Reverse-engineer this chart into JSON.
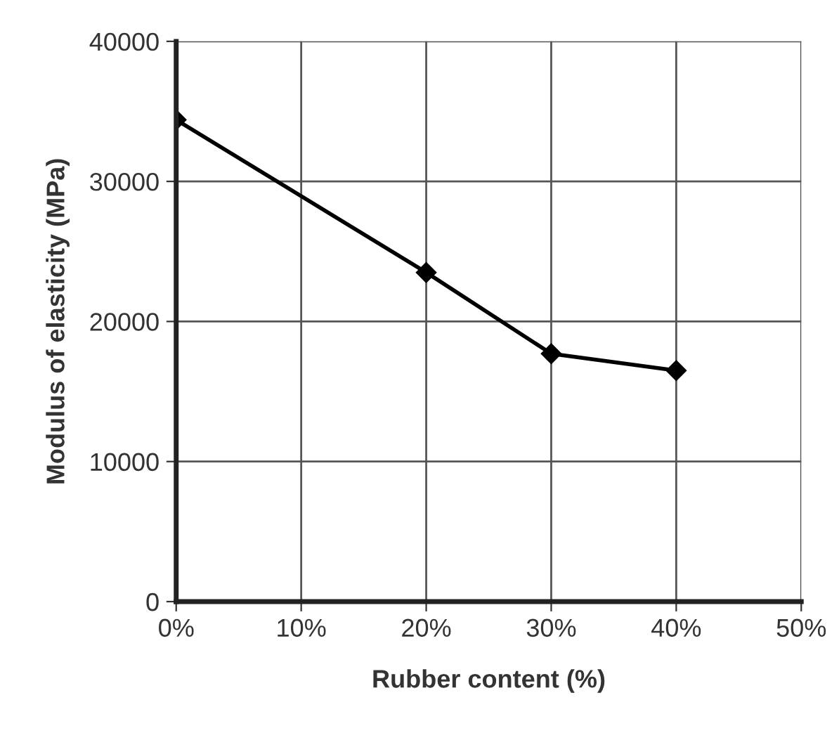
{
  "chart_data": {
    "type": "line",
    "xlabel": "Rubber content (%)",
    "ylabel": "Modulus of elasticity (MPa)",
    "x": [
      0,
      20,
      30,
      40
    ],
    "series": [
      {
        "color": "#000000",
        "values": [
          34400,
          23500,
          17700,
          16500
        ]
      }
    ],
    "xlim": [
      0,
      50
    ],
    "xticks": [
      {
        "value": 0,
        "label": "0%"
      },
      {
        "value": 10,
        "label": "10%"
      },
      {
        "value": 20,
        "label": "20%"
      },
      {
        "value": 30,
        "label": "30%"
      },
      {
        "value": 40,
        "label": "40%"
      },
      {
        "value": 50,
        "label": "50%"
      }
    ],
    "ylim": [
      0,
      40000
    ],
    "yticks": [
      0,
      10000,
      20000,
      30000,
      40000
    ],
    "grid": true,
    "marker": "diamond",
    "line_style": "solid"
  }
}
